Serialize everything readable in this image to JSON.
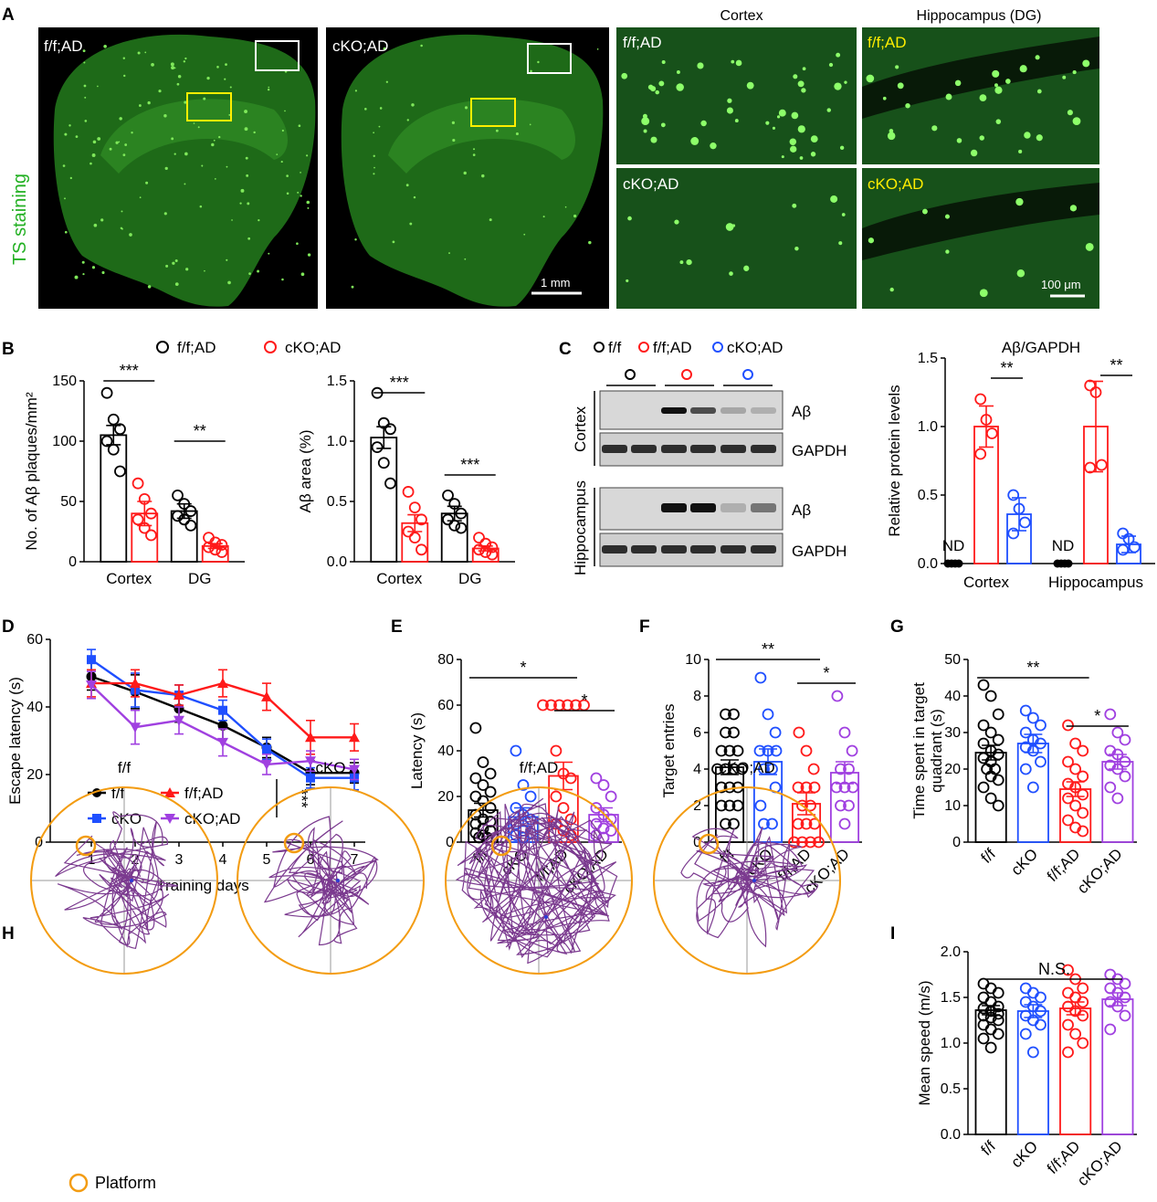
{
  "panelA": {
    "letter": "A",
    "side_label": "TS staining",
    "overview_labels": [
      "f/f;AD",
      "cKO;AD"
    ],
    "scale_1": "1 mm",
    "col_headers": [
      "Cortex",
      "Hippocampus (DG)"
    ],
    "zoom_labels": [
      "f/f;AD",
      "f/f;AD",
      "cKO;AD",
      "cKO;AD"
    ],
    "scale_2": "100 μm",
    "colors": {
      "bg": "#0a1a08",
      "stain": "#2f9a2a",
      "plaque": "#8dff6a",
      "box_white": "#ffffff",
      "box_yellow": "#ffee00",
      "label_yellow": "#ffee00"
    }
  },
  "legendB": {
    "letter": "B",
    "items": [
      "f/f;AD",
      "cKO;AD"
    ]
  },
  "legendC": {
    "letter": "C",
    "items": [
      "f/f",
      "f/f;AD",
      "cKO;AD"
    ]
  },
  "blot": {
    "region_labels": [
      "Cortex",
      "Hippocampus"
    ],
    "band_labels": [
      "Aβ",
      "GAPDH",
      "Aβ",
      "GAPDH"
    ]
  },
  "panelH": {
    "letter": "H",
    "titles": [
      "f/f",
      "cKO",
      "f/f;AD",
      "cKO;AD"
    ],
    "legend": "Platform",
    "ring_color": "#f39c12",
    "path_color": "#7b3a8f"
  },
  "letters": {
    "D": "D",
    "E": "E",
    "F": "F",
    "G": "G",
    "I": "I"
  },
  "colors": {
    "ff": "#000000",
    "ckO": "#1f4fff",
    "ffAD": "#ff1a1a",
    "ckoAD": "#a040e0"
  },
  "chart_data": [
    {
      "id": "B1",
      "type": "bar",
      "categories": [
        "Cortex",
        "DG"
      ],
      "series": [
        {
          "name": "f/f;AD",
          "values": [
            105,
            42
          ],
          "errors": [
            8,
            6
          ],
          "points": [
            [
              140,
              118,
              110,
              100,
              93,
              75
            ],
            [
              55,
              48,
              42,
              38,
              35,
              30
            ]
          ]
        },
        {
          "name": "cKO;AD",
          "values": [
            40,
            13
          ],
          "errors": [
            10,
            2
          ],
          "points": [
            [
              65,
              52,
              40,
              35,
              28,
              22
            ],
            [
              20,
              16,
              14,
              12,
              10,
              8
            ]
          ]
        }
      ],
      "ylabel": "No. of Aβ plaques/mm²",
      "ylim": [
        0,
        150
      ],
      "yticks": [
        0,
        50,
        100,
        150
      ],
      "sig": [
        "***",
        "**"
      ]
    },
    {
      "id": "B2",
      "type": "bar",
      "categories": [
        "Cortex",
        "DG"
      ],
      "series": [
        {
          "name": "f/f;AD",
          "values": [
            1.03,
            0.4
          ],
          "errors": [
            0.09,
            0.06
          ],
          "points": [
            [
              1.4,
              1.15,
              1.1,
              0.95,
              0.82,
              0.65
            ],
            [
              0.55,
              0.48,
              0.4,
              0.35,
              0.3,
              0.28
            ]
          ]
        },
        {
          "name": "cKO;AD",
          "values": [
            0.32,
            0.11
          ],
          "errors": [
            0.07,
            0.02
          ],
          "points": [
            [
              0.58,
              0.45,
              0.35,
              0.25,
              0.2,
              0.1
            ],
            [
              0.2,
              0.15,
              0.12,
              0.1,
              0.08,
              0.06
            ]
          ]
        }
      ],
      "ylabel": "Aβ area (%)",
      "ylim": [
        0,
        1.5
      ],
      "yticks": [
        0.0,
        0.5,
        1.0,
        1.5
      ],
      "sig": [
        "***",
        "***"
      ]
    },
    {
      "id": "C",
      "type": "bar",
      "title": "Aβ/GAPDH",
      "categories": [
        "Cortex",
        "Hippocampus"
      ],
      "series": [
        {
          "name": "f/f",
          "values": [
            0,
            0
          ],
          "errors": [
            0,
            0
          ],
          "points": [
            [
              0,
              0,
              0,
              0
            ],
            [
              0,
              0,
              0,
              0
            ]
          ]
        },
        {
          "name": "f/f;AD",
          "values": [
            1.0,
            1.0
          ],
          "errors": [
            0.15,
            0.33
          ],
          "points": [
            [
              1.2,
              1.05,
              0.95,
              0.8
            ],
            [
              1.3,
              1.25,
              0.72,
              0.7
            ]
          ]
        },
        {
          "name": "cKO;AD",
          "values": [
            0.36,
            0.14
          ],
          "errors": [
            0.12,
            0.06
          ],
          "points": [
            [
              0.5,
              0.4,
              0.3,
              0.22
            ],
            [
              0.22,
              0.18,
              0.12,
              0.1
            ]
          ]
        }
      ],
      "nd_label": "ND",
      "ylabel": "Relative protein levels",
      "ylim": [
        0,
        1.5
      ],
      "yticks": [
        0.0,
        0.5,
        1.0,
        1.5
      ],
      "sig": [
        "**",
        "**"
      ]
    },
    {
      "id": "D",
      "type": "line",
      "x": [
        1,
        2,
        3,
        4,
        5,
        6,
        7
      ],
      "series": [
        {
          "name": "f/f",
          "values": [
            49,
            44.5,
            39.5,
            34.5,
            28,
            20.5,
            20.5
          ],
          "errors": [
            4,
            5,
            4,
            4,
            3,
            3.5,
            3
          ]
        },
        {
          "name": "cKO",
          "values": [
            54,
            45,
            43.5,
            39,
            27.5,
            19,
            19
          ],
          "errors": [
            3,
            5,
            3,
            3,
            3,
            3,
            3.5
          ]
        },
        {
          "name": "f/f;AD",
          "values": [
            47,
            47,
            43.5,
            47,
            43,
            31,
            31
          ],
          "errors": [
            4,
            4,
            3,
            4,
            4,
            5,
            4
          ]
        },
        {
          "name": "cKO;AD",
          "values": [
            46.5,
            34,
            36,
            29.5,
            23,
            24,
            21.5
          ],
          "errors": [
            4,
            5,
            4,
            4,
            3,
            3,
            3
          ]
        }
      ],
      "xlabel": "Training days",
      "ylabel": "Escape latency (s)",
      "ylim": [
        0,
        60
      ],
      "yticks": [
        0,
        20,
        40,
        60
      ],
      "sig": "***"
    },
    {
      "id": "E",
      "type": "bar",
      "categories": [
        "f/f",
        "cKO",
        "f/f;AD",
        "cKO;AD"
      ],
      "values": [
        14,
        11,
        29,
        12
      ],
      "errors": [
        3,
        4,
        6,
        3
      ],
      "points": [
        [
          50,
          35,
          30,
          28,
          25,
          22,
          20,
          18,
          15,
          12,
          10,
          9,
          8,
          6,
          5,
          4,
          3,
          2,
          2
        ],
        [
          40,
          25,
          20,
          15,
          12,
          10,
          8,
          5,
          4,
          3,
          2
        ],
        [
          60,
          60,
          60,
          60,
          60,
          60,
          40,
          30,
          28,
          20,
          15,
          10,
          8,
          5,
          3
        ],
        [
          28,
          25,
          20,
          15,
          12,
          10,
          8,
          6,
          5,
          3,
          2
        ]
      ],
      "ylabel": "Latency (s)",
      "ylim": [
        0,
        80
      ],
      "yticks": [
        0,
        20,
        40,
        60,
        80
      ],
      "sig": [
        "*",
        "*"
      ]
    },
    {
      "id": "F",
      "type": "bar",
      "categories": [
        "f/f",
        "cKO",
        "f/f;AD",
        "cKO;AD"
      ],
      "values": [
        4.1,
        4.4,
        2.1,
        3.8
      ],
      "errors": [
        0.4,
        0.7,
        0.6,
        0.6
      ],
      "points": [
        [
          7,
          7,
          6,
          6,
          5,
          5,
          5,
          4,
          4,
          4,
          4,
          3,
          3,
          3,
          2,
          2,
          2,
          1,
          1
        ],
        [
          9,
          7,
          6,
          5,
          5,
          5,
          4,
          4,
          3,
          2,
          1,
          1
        ],
        [
          6,
          5,
          4,
          3,
          3,
          3,
          2,
          2,
          1,
          1,
          1,
          0,
          0,
          0,
          0
        ],
        [
          8,
          6,
          5,
          4,
          4,
          3,
          3,
          3,
          2,
          2,
          1
        ]
      ],
      "ylabel": "Target entries",
      "ylim": [
        0,
        10
      ],
      "yticks": [
        0,
        2,
        4,
        6,
        8,
        10
      ],
      "sig": [
        "**",
        "*"
      ]
    },
    {
      "id": "G",
      "type": "bar",
      "categories": [
        "f/f",
        "cKO",
        "f/f;AD",
        "cKO;AD"
      ],
      "values": [
        24.5,
        27,
        14.5,
        22
      ],
      "errors": [
        2,
        2.5,
        2,
        2
      ],
      "points": [
        [
          43,
          40,
          35,
          32,
          30,
          28,
          27,
          25,
          24,
          23,
          22,
          20,
          20,
          18,
          17,
          15,
          12,
          10
        ],
        [
          36,
          34,
          32,
          30,
          28,
          27,
          26,
          25,
          22,
          20,
          15
        ],
        [
          32,
          27,
          25,
          22,
          20,
          18,
          16,
          15,
          13,
          12,
          10,
          8,
          6,
          4,
          3
        ],
        [
          35,
          30,
          28,
          25,
          24,
          22,
          21,
          20,
          18,
          15,
          12
        ]
      ],
      "ylabel": "Time spent in target quadrant (s)",
      "ylim": [
        0,
        50
      ],
      "yticks": [
        0,
        10,
        20,
        30,
        40,
        50
      ],
      "sig": [
        "**",
        "*"
      ]
    },
    {
      "id": "I",
      "type": "bar",
      "categories": [
        "f/f",
        "cKO",
        "f/f;AD",
        "cKO;AD"
      ],
      "values": [
        1.36,
        1.35,
        1.38,
        1.48
      ],
      "errors": [
        0.05,
        0.07,
        0.07,
        0.07
      ],
      "points": [
        [
          1.65,
          1.6,
          1.55,
          1.5,
          1.45,
          1.4,
          1.38,
          1.35,
          1.32,
          1.3,
          1.28,
          1.25,
          1.2,
          1.15,
          1.1,
          1.05,
          0.95
        ],
        [
          1.6,
          1.55,
          1.5,
          1.45,
          1.4,
          1.35,
          1.3,
          1.25,
          1.2,
          1.1,
          0.9
        ],
        [
          1.8,
          1.7,
          1.6,
          1.55,
          1.5,
          1.45,
          1.4,
          1.35,
          1.3,
          1.2,
          1.1,
          1.0,
          0.9
        ],
        [
          1.75,
          1.7,
          1.65,
          1.6,
          1.55,
          1.5,
          1.45,
          1.4,
          1.3,
          1.15
        ]
      ],
      "ylabel": "Mean speed (m/s)",
      "ylim": [
        0,
        2.0
      ],
      "yticks": [
        0.0,
        0.5,
        1.0,
        1.5,
        2.0
      ],
      "sig": [
        "N.S."
      ]
    }
  ]
}
